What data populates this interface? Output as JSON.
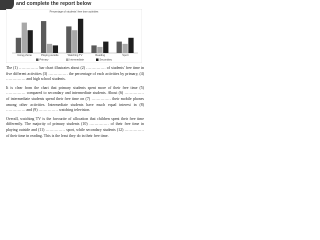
{
  "header": {
    "title": "and complete the report below"
  },
  "chart": {
    "type": "bar",
    "title": "Percentage of students' free time activities",
    "categories": [
      "Using phone",
      "Playing outside",
      "Watching TV",
      "Reading",
      "Sport"
    ],
    "series": [
      {
        "name": "Primary",
        "color": "#5a5a5a",
        "values": [
          20,
          42,
          35,
          10,
          15
        ]
      },
      {
        "name": "Intermediate",
        "color": "#a8a8a8",
        "values": [
          40,
          12,
          30,
          8,
          12
        ]
      },
      {
        "name": "Secondary",
        "color": "#1e1e1e",
        "values": [
          30,
          10,
          45,
          15,
          20
        ]
      }
    ],
    "ylim": [
      0,
      50
    ]
  },
  "paragraphs": [
    "The (1) …………… bar chart illustrates about (2) …………… of students' free time in five different activities (3) …………… the percentage of each activities by primary, (4) …………… and high school students.",
    "It is clear from the chart that primary students spent more of their free time (5) …………… compared to secondary and intermediate students. About (6) …………… of intermediate students spend their free time on (7) …………… their mobile phones among other activities. Intermediate students have much equal interest in (8) …………… and (9) …………… watching television.",
    "Overall, watching TV is the favourite of allocation that children spent their free time differently. The majority of primary students (10) …………… of their free time in playing outside and (11) …………… sport, while secondary students (12) …………… of their time in reading. This is the least they do in their free time."
  ]
}
